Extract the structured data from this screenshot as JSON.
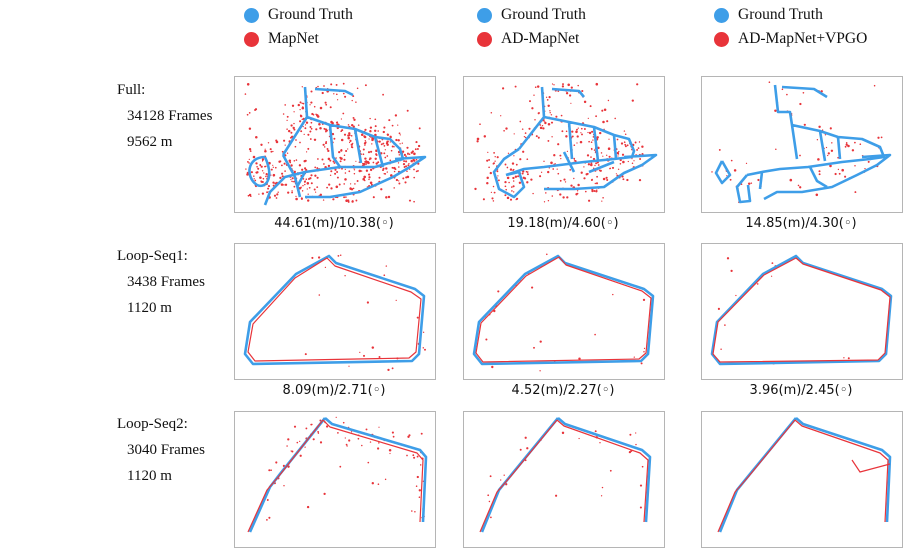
{
  "colors": {
    "ground_truth": "#3e9ee8",
    "prediction": "#e8343a"
  },
  "legends": [
    {
      "gt_label": "Ground Truth",
      "pred_label": "MapNet"
    },
    {
      "gt_label": "Ground Truth",
      "pred_label": "AD-MapNet"
    },
    {
      "gt_label": "Ground Truth",
      "pred_label": "AD-MapNet+VPGO"
    }
  ],
  "rows": [
    {
      "title": "Full:",
      "frames": "34128 Frames",
      "distance": "9562 m",
      "errors": [
        "44.61(m)/10.38(◦)",
        "19.18(m)/4.60(◦)",
        "14.85(m)/4.30(◦)"
      ]
    },
    {
      "title": "Loop-Seq1:",
      "frames": "3438 Frames",
      "distance": "1120 m",
      "errors": [
        "8.09(m)/2.71(◦)",
        "4.52(m)/2.27(◦)",
        "3.96(m)/2.45(◦)"
      ]
    },
    {
      "title": "Loop-Seq2:",
      "frames": "3040 Frames",
      "distance": "1120 m",
      "errors": []
    }
  ]
}
